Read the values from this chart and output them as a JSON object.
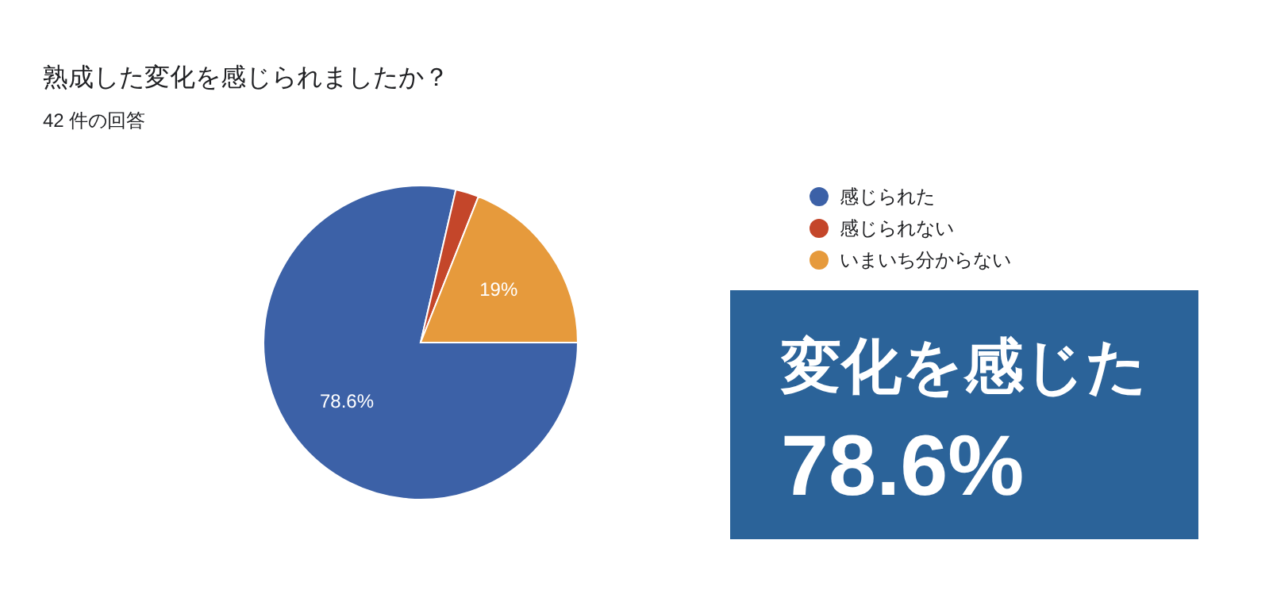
{
  "chart_data": {
    "type": "pie",
    "title": "熟成した変化を感じられましたか？",
    "subtitle": "42 件の回答",
    "categories": [
      "感じられた",
      "感じられない",
      "いまいち分からない"
    ],
    "values": [
      78.6,
      2.4,
      19.0
    ],
    "colors": [
      "#3c61a7",
      "#c4462a",
      "#e69a3c"
    ],
    "value_labels": [
      "78.6%",
      null,
      "19%"
    ],
    "legend": "right",
    "annotations": [
      "変化を感じた",
      "78.6%"
    ]
  }
}
